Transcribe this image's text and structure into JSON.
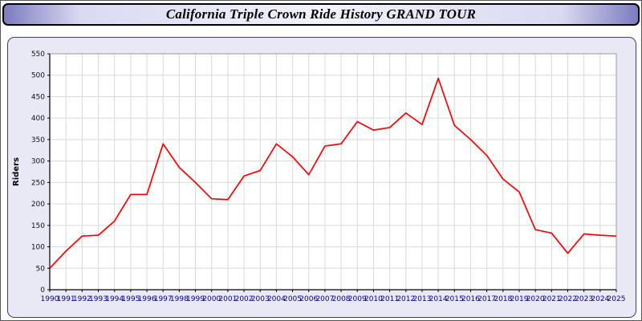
{
  "header": {
    "title": "California Triple Crown Ride History GRAND TOUR"
  },
  "colors": {
    "line": "#ff0000",
    "x_tick_label": "#00008b",
    "y_tick_label": "#111111",
    "grid": "#d9d9d9",
    "axis": "#000000",
    "plot_border": "#999999",
    "plot_background": "#ffffff",
    "panel_background": "#e9e9f6"
  },
  "chart_data": {
    "type": "line",
    "title": "California Triple Crown Ride History GRAND TOUR",
    "xlabel": "",
    "ylabel": "Riders",
    "ylim": [
      0,
      550
    ],
    "ytick_step": 50,
    "grid": true,
    "legend": false,
    "x": [
      1990,
      1991,
      1992,
      1993,
      1994,
      1995,
      1996,
      1997,
      1998,
      1999,
      2000,
      2001,
      2002,
      2003,
      2004,
      2005,
      2006,
      2007,
      2008,
      2009,
      2010,
      2011,
      2012,
      2013,
      2014,
      2015,
      2016,
      2017,
      2018,
      2019,
      2020,
      2021,
      2022,
      2023,
      2024,
      2025
    ],
    "series": [
      {
        "name": "Riders",
        "color": "#ff0000",
        "values": [
          50,
          90,
          125,
          127,
          160,
          222,
          222,
          340,
          285,
          250,
          212,
          210,
          265,
          278,
          340,
          310,
          268,
          335,
          340,
          392,
          372,
          378,
          412,
          385,
          493,
          383,
          350,
          313,
          258,
          228,
          140,
          132,
          85,
          130,
          127,
          125
        ]
      }
    ]
  }
}
